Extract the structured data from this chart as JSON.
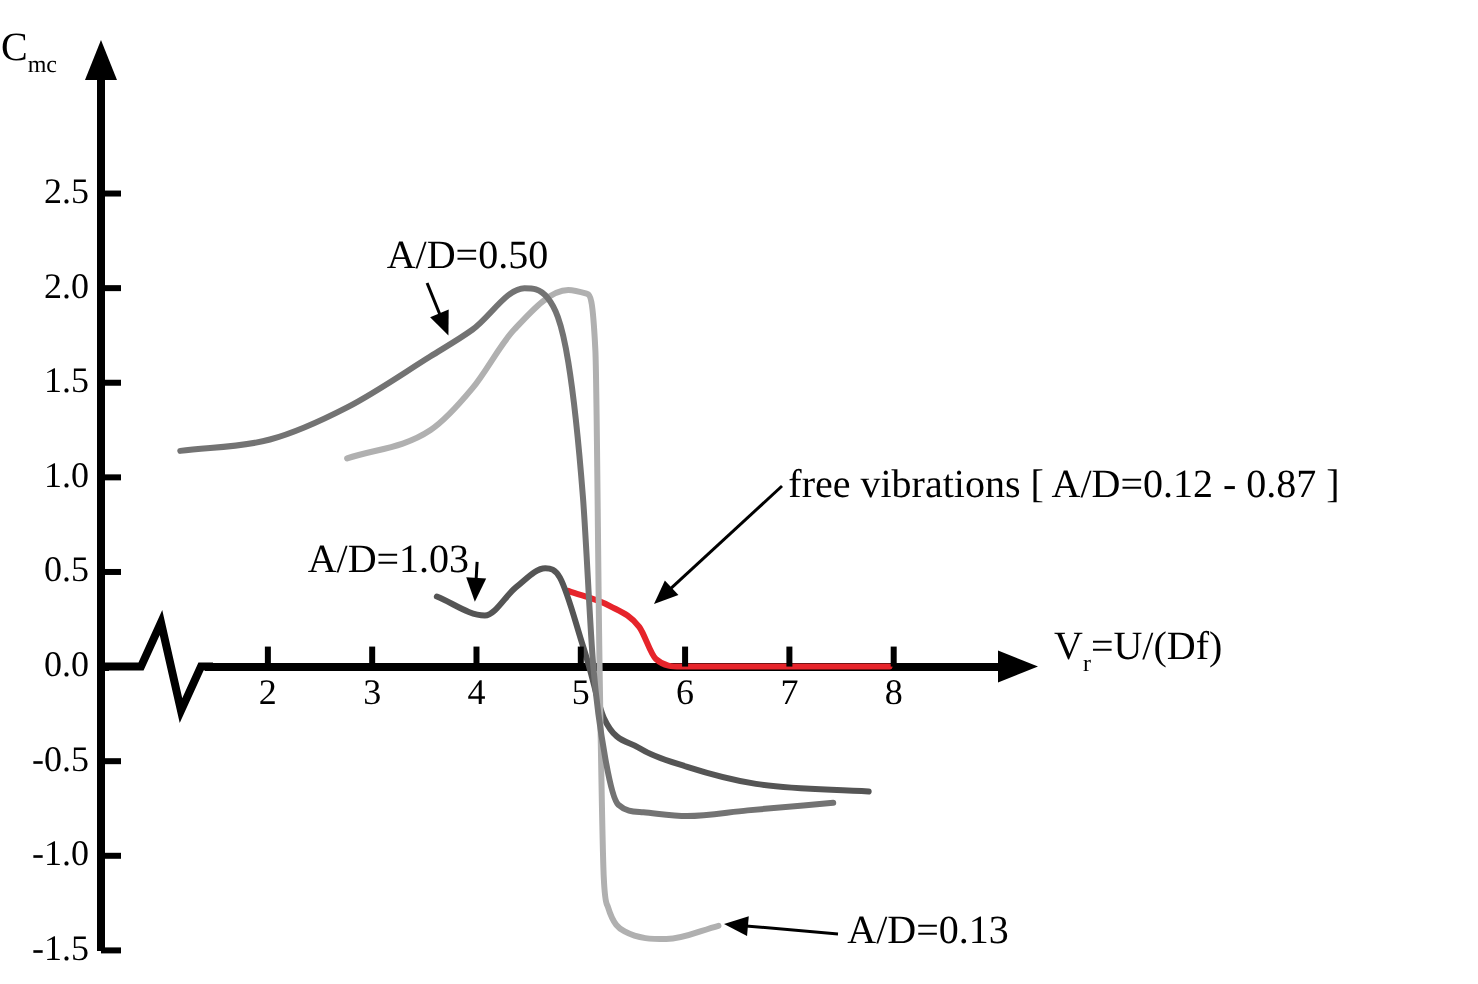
{
  "chart_data": {
    "type": "line",
    "xlabel": "V$_{r}$=U/(Df)",
    "ylabel": "C$_{mc}$",
    "xlim": [
      0.4,
      9
    ],
    "ylim": [
      -1.5,
      3.1
    ],
    "xticks": [
      2,
      3,
      4,
      5,
      6,
      7,
      8
    ],
    "yticks": [
      {
        "value": -1.5,
        "label": "-1.5"
      },
      {
        "value": -1,
        "label": "-1.0"
      },
      {
        "value": -0.5,
        "label": "-0.5"
      },
      {
        "value": 0,
        "label": "0.0"
      },
      {
        "value": 0.5,
        "label": "0.5"
      },
      {
        "value": 1,
        "label": "1.0"
      },
      {
        "value": 1.5,
        "label": "1.5"
      },
      {
        "value": 2,
        "label": "2.0"
      },
      {
        "value": 2.5,
        "label": "2.5"
      }
    ],
    "marker": "none",
    "legend": false,
    "grid": false,
    "series": [
      {
        "color": "#737373",
        "x": [
          1.16,
          2.02,
          2.76,
          3.56,
          3.96,
          4.46,
          4.68,
          4.88,
          5.02,
          5.12,
          5.24,
          5.36,
          5.6,
          6.02,
          6.6,
          7.42
        ],
        "values": [
          1.14,
          1.2,
          1.37,
          1.64,
          1.78,
          2.0,
          1.95,
          1.61,
          0.9,
          0.0,
          -0.5,
          -0.73,
          -0.77,
          -0.79,
          -0.76,
          -0.72
        ]
      },
      {
        "color": "#b0b0b0",
        "x": [
          2.76,
          3.56,
          3.96,
          4.36,
          4.88,
          5.06,
          5.14,
          5.18,
          5.22,
          5.26,
          5.42,
          5.82,
          6.32
        ],
        "values": [
          1.1,
          1.25,
          1.47,
          1.78,
          1.99,
          1.97,
          1.67,
          0.0,
          -1.11,
          -1.27,
          -1.4,
          -1.44,
          -1.37
        ]
      },
      {
        "color": "#555555",
        "x": [
          3.62,
          4.08,
          4.38,
          4.66,
          4.8,
          5.02,
          5.08,
          5.22,
          5.56,
          6.02,
          6.68,
          7.76
        ],
        "values": [
          0.37,
          0.27,
          0.42,
          0.52,
          0.47,
          0.11,
          0.0,
          -0.27,
          -0.43,
          -0.53,
          -0.62,
          -0.66
        ]
      },
      {
        "color": "#e6242b",
        "x": [
          4.88,
          5.28,
          5.56,
          5.72,
          5.96,
          7.96
        ],
        "values": [
          0.4,
          0.32,
          0.21,
          0.04,
          0.0,
          0.0
        ]
      }
    ],
    "annotations": [
      {
        "text": "A/D=0.50",
        "x": 3.76,
        "y": 1.71
      },
      {
        "text": "A/D=1.03",
        "x": 3.98,
        "y": 0.3
      },
      "free vibrations [ A/D=0.12 - 0.87 ]",
      "A/D=0.13"
    ]
  }
}
